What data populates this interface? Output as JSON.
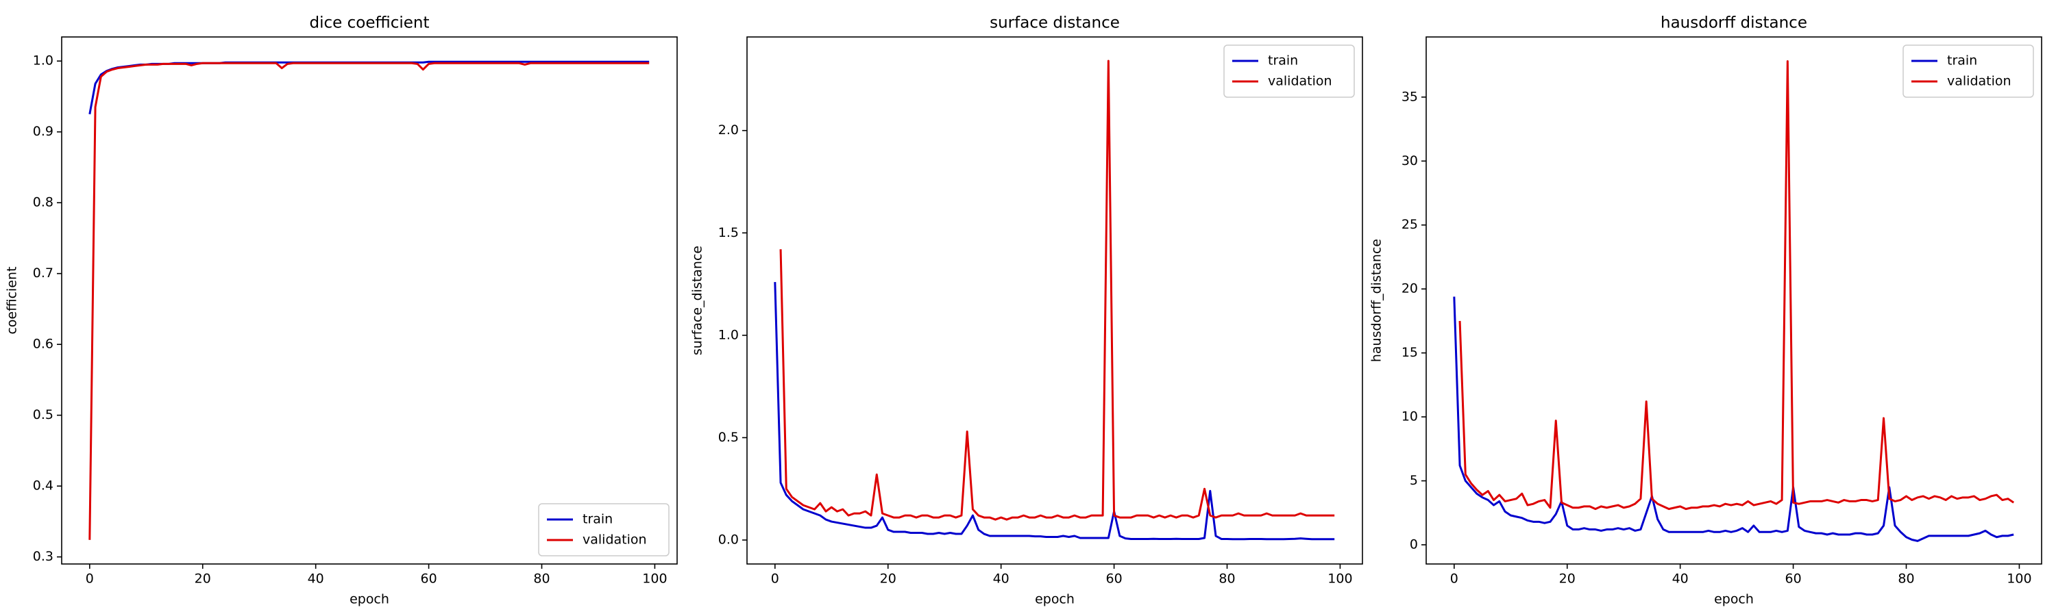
{
  "chart_data": [
    {
      "type": "line",
      "title": "dice coefficient",
      "x_label": "epoch",
      "y_label": "coefficient",
      "legend": "lower right",
      "x": [
        0,
        1,
        2,
        3,
        4,
        5,
        6,
        7,
        8,
        9,
        10,
        11,
        12,
        13,
        14,
        15,
        16,
        17,
        18,
        19,
        20,
        21,
        22,
        23,
        24,
        25,
        26,
        27,
        28,
        29,
        30,
        31,
        32,
        33,
        34,
        35,
        36,
        37,
        38,
        39,
        40,
        41,
        42,
        43,
        44,
        45,
        46,
        47,
        48,
        49,
        50,
        51,
        52,
        53,
        54,
        55,
        56,
        57,
        58,
        59,
        60,
        61,
        62,
        63,
        64,
        65,
        66,
        67,
        68,
        69,
        70,
        71,
        72,
        73,
        74,
        75,
        76,
        77,
        78,
        79,
        80,
        81,
        82,
        83,
        84,
        85,
        86,
        87,
        88,
        89,
        90,
        91,
        92,
        93,
        94,
        95,
        96,
        97,
        98,
        99
      ],
      "xlim": [
        -4.95,
        103.95
      ],
      "xticks": [
        0,
        20,
        40,
        60,
        80,
        100
      ],
      "ylim": [
        0.29,
        1.034
      ],
      "yticks": [
        0.3,
        0.4,
        0.5,
        0.6,
        0.7,
        0.8,
        0.9,
        {
          "value": 1,
          "label": "1.0"
        }
      ],
      "series": [
        {
          "name": "train",
          "color": "#0000cd",
          "values": [
            0.925,
            0.968,
            0.981,
            0.986,
            0.989,
            0.991,
            0.992,
            0.993,
            0.994,
            0.995,
            0.995,
            0.996,
            0.996,
            0.996,
            0.996,
            0.997,
            0.997,
            0.997,
            0.997,
            0.997,
            0.997,
            0.997,
            0.997,
            0.997,
            0.998,
            0.998,
            0.998,
            0.998,
            0.998,
            0.998,
            0.998,
            0.998,
            0.998,
            0.998,
            0.998,
            0.998,
            0.998,
            0.998,
            0.998,
            0.998,
            0.998,
            0.998,
            0.998,
            0.998,
            0.998,
            0.998,
            0.998,
            0.998,
            0.998,
            0.998,
            0.998,
            0.998,
            0.998,
            0.998,
            0.998,
            0.998,
            0.998,
            0.998,
            0.998,
            0.998,
            0.999,
            0.999,
            0.999,
            0.999,
            0.999,
            0.999,
            0.999,
            0.999,
            0.999,
            0.999,
            0.999,
            0.999,
            0.999,
            0.999,
            0.999,
            0.999,
            0.999,
            0.999,
            0.999,
            0.999,
            0.999,
            0.999,
            0.999,
            0.999,
            0.999,
            0.999,
            0.999,
            0.999,
            0.999,
            0.999,
            0.999,
            0.999,
            0.999,
            0.999,
            0.999,
            0.999,
            0.999,
            0.999,
            0.999,
            0.999
          ]
        },
        {
          "name": "validation",
          "color": "#dd0000",
          "values": [
            0.324,
            0.935,
            0.978,
            0.985,
            0.988,
            0.99,
            0.991,
            0.992,
            0.993,
            0.994,
            0.995,
            0.995,
            0.995,
            0.996,
            0.996,
            0.996,
            0.996,
            0.996,
            0.994,
            0.996,
            0.997,
            0.997,
            0.997,
            0.997,
            0.997,
            0.997,
            0.997,
            0.997,
            0.997,
            0.997,
            0.997,
            0.997,
            0.997,
            0.997,
            0.99,
            0.996,
            0.997,
            0.997,
            0.997,
            0.997,
            0.997,
            0.997,
            0.997,
            0.997,
            0.997,
            0.997,
            0.997,
            0.997,
            0.997,
            0.997,
            0.997,
            0.997,
            0.997,
            0.997,
            0.997,
            0.997,
            0.997,
            0.997,
            0.996,
            0.988,
            0.996,
            0.997,
            0.997,
            0.997,
            0.997,
            0.997,
            0.997,
            0.997,
            0.997,
            0.997,
            0.997,
            0.997,
            0.997,
            0.997,
            0.997,
            0.997,
            0.997,
            0.995,
            0.997,
            0.997,
            0.997,
            0.997,
            0.997,
            0.997,
            0.997,
            0.997,
            0.997,
            0.997,
            0.997,
            0.997,
            0.997,
            0.997,
            0.997,
            0.997,
            0.997,
            0.997,
            0.997,
            0.997,
            0.997,
            0.997
          ]
        }
      ]
    },
    {
      "type": "line",
      "title": "surface distance",
      "x_label": "epoch",
      "y_label": "surface_distance",
      "legend": "upper right",
      "x": [
        0,
        1,
        2,
        3,
        4,
        5,
        6,
        7,
        8,
        9,
        10,
        11,
        12,
        13,
        14,
        15,
        16,
        17,
        18,
        19,
        20,
        21,
        22,
        23,
        24,
        25,
        26,
        27,
        28,
        29,
        30,
        31,
        32,
        33,
        34,
        35,
        36,
        37,
        38,
        39,
        40,
        41,
        42,
        43,
        44,
        45,
        46,
        47,
        48,
        49,
        50,
        51,
        52,
        53,
        54,
        55,
        56,
        57,
        58,
        59,
        60,
        61,
        62,
        63,
        64,
        65,
        66,
        67,
        68,
        69,
        70,
        71,
        72,
        73,
        74,
        75,
        76,
        77,
        78,
        79,
        80,
        81,
        82,
        83,
        84,
        85,
        86,
        87,
        88,
        89,
        90,
        91,
        92,
        93,
        94,
        95,
        96,
        97,
        98,
        99
      ],
      "xlim": [
        -4.95,
        103.95
      ],
      "xticks": [
        0,
        20,
        40,
        60,
        80,
        100
      ],
      "ylim": [
        -0.117,
        2.457
      ],
      "yticks": [
        {
          "value": 0,
          "label": "0.0"
        },
        0.5,
        {
          "value": 1,
          "label": "1.0"
        },
        1.5,
        {
          "value": 2,
          "label": "2.0"
        }
      ],
      "series": [
        {
          "name": "train",
          "color": "#0000cd",
          "values": [
            1.26,
            0.28,
            0.22,
            0.19,
            0.17,
            0.15,
            0.14,
            0.13,
            0.12,
            0.1,
            0.09,
            0.085,
            0.08,
            0.075,
            0.07,
            0.065,
            0.06,
            0.06,
            0.07,
            0.11,
            0.05,
            0.04,
            0.04,
            0.04,
            0.035,
            0.035,
            0.035,
            0.03,
            0.03,
            0.035,
            0.03,
            0.035,
            0.03,
            0.03,
            0.07,
            0.12,
            0.05,
            0.03,
            0.02,
            0.02,
            0.02,
            0.02,
            0.02,
            0.02,
            0.02,
            0.02,
            0.018,
            0.018,
            0.015,
            0.015,
            0.015,
            0.02,
            0.015,
            0.02,
            0.01,
            0.01,
            0.01,
            0.01,
            0.01,
            0.01,
            0.14,
            0.02,
            0.008,
            0.005,
            0.005,
            0.005,
            0.005,
            0.006,
            0.005,
            0.005,
            0.005,
            0.006,
            0.005,
            0.005,
            0.005,
            0.005,
            0.01,
            0.24,
            0.02,
            0.005,
            0.005,
            0.004,
            0.004,
            0.004,
            0.005,
            0.005,
            0.005,
            0.004,
            0.004,
            0.004,
            0.004,
            0.005,
            0.006,
            0.008,
            0.006,
            0.004,
            0.004,
            0.004,
            0.004,
            0.004
          ]
        },
        {
          "name": "validation",
          "color": "#dd0000",
          "values": [
            null,
            1.42,
            0.25,
            0.21,
            0.19,
            0.17,
            0.16,
            0.15,
            0.18,
            0.14,
            0.16,
            0.14,
            0.15,
            0.12,
            0.13,
            0.13,
            0.14,
            0.12,
            0.32,
            0.13,
            0.12,
            0.11,
            0.11,
            0.12,
            0.12,
            0.11,
            0.12,
            0.12,
            0.11,
            0.11,
            0.12,
            0.12,
            0.11,
            0.12,
            0.53,
            0.15,
            0.12,
            0.11,
            0.11,
            0.1,
            0.11,
            0.1,
            0.11,
            0.11,
            0.12,
            0.11,
            0.11,
            0.12,
            0.11,
            0.11,
            0.12,
            0.11,
            0.11,
            0.12,
            0.11,
            0.11,
            0.12,
            0.12,
            0.12,
            2.34,
            0.12,
            0.11,
            0.11,
            0.11,
            0.12,
            0.12,
            0.12,
            0.11,
            0.12,
            0.11,
            0.12,
            0.11,
            0.12,
            0.12,
            0.11,
            0.12,
            0.25,
            0.12,
            0.11,
            0.12,
            0.12,
            0.12,
            0.13,
            0.12,
            0.12,
            0.12,
            0.12,
            0.13,
            0.12,
            0.12,
            0.12,
            0.12,
            0.12,
            0.13,
            0.12,
            0.12,
            0.12,
            0.12,
            0.12,
            0.12
          ]
        }
      ]
    },
    {
      "type": "line",
      "title": "hausdorff distance",
      "x_label": "epoch",
      "y_label": "hausdorff_distance",
      "legend": "upper right",
      "x": [
        0,
        1,
        2,
        3,
        4,
        5,
        6,
        7,
        8,
        9,
        10,
        11,
        12,
        13,
        14,
        15,
        16,
        17,
        18,
        19,
        20,
        21,
        22,
        23,
        24,
        25,
        26,
        27,
        28,
        29,
        30,
        31,
        32,
        33,
        34,
        35,
        36,
        37,
        38,
        39,
        40,
        41,
        42,
        43,
        44,
        45,
        46,
        47,
        48,
        49,
        50,
        51,
        52,
        53,
        54,
        55,
        56,
        57,
        58,
        59,
        60,
        61,
        62,
        63,
        64,
        65,
        66,
        67,
        68,
        69,
        70,
        71,
        72,
        73,
        74,
        75,
        76,
        77,
        78,
        79,
        80,
        81,
        82,
        83,
        84,
        85,
        86,
        87,
        88,
        89,
        90,
        91,
        92,
        93,
        94,
        95,
        96,
        97,
        98,
        99
      ],
      "xlim": [
        -4.95,
        103.95
      ],
      "xticks": [
        0,
        20,
        40,
        60,
        80,
        100
      ],
      "ylim": [
        -1.5,
        39.7
      ],
      "yticks": [
        0,
        5,
        10,
        15,
        20,
        25,
        30,
        35
      ],
      "series": [
        {
          "name": "train",
          "color": "#0000cd",
          "values": [
            19.4,
            6.2,
            5.0,
            4.5,
            4.0,
            3.7,
            3.5,
            3.1,
            3.4,
            2.6,
            2.3,
            2.2,
            2.1,
            1.9,
            1.8,
            1.8,
            1.7,
            1.8,
            2.4,
            3.4,
            1.5,
            1.2,
            1.2,
            1.3,
            1.2,
            1.2,
            1.1,
            1.2,
            1.2,
            1.3,
            1.2,
            1.3,
            1.1,
            1.2,
            2.5,
            3.8,
            2.0,
            1.2,
            1.0,
            1.0,
            1.0,
            1.0,
            1.0,
            1.0,
            1.0,
            1.1,
            1.0,
            1.0,
            1.1,
            1.0,
            1.1,
            1.3,
            1.0,
            1.5,
            1.0,
            1.0,
            1.0,
            1.1,
            1.0,
            1.1,
            4.5,
            1.4,
            1.1,
            1.0,
            0.9,
            0.9,
            0.8,
            0.9,
            0.8,
            0.8,
            0.8,
            0.9,
            0.9,
            0.8,
            0.8,
            0.9,
            1.5,
            4.5,
            1.5,
            1.0,
            0.6,
            0.4,
            0.3,
            0.5,
            0.7,
            0.7,
            0.7,
            0.7,
            0.7,
            0.7,
            0.7,
            0.7,
            0.8,
            0.9,
            1.1,
            0.8,
            0.6,
            0.7,
            0.7,
            0.8
          ]
        },
        {
          "name": "validation",
          "color": "#dd0000",
          "values": [
            null,
            17.5,
            5.5,
            4.8,
            4.3,
            3.9,
            4.2,
            3.5,
            3.9,
            3.4,
            3.5,
            3.6,
            4.0,
            3.1,
            3.2,
            3.4,
            3.5,
            2.9,
            9.7,
            3.3,
            3.1,
            2.9,
            2.9,
            3.0,
            3.0,
            2.8,
            3.0,
            2.9,
            3.0,
            3.1,
            2.9,
            3.0,
            3.2,
            3.6,
            11.2,
            3.6,
            3.2,
            3.0,
            2.8,
            2.9,
            3.0,
            2.8,
            2.9,
            2.9,
            3.0,
            3.0,
            3.1,
            3.0,
            3.2,
            3.1,
            3.2,
            3.1,
            3.4,
            3.1,
            3.2,
            3.3,
            3.4,
            3.2,
            3.5,
            37.8,
            3.3,
            3.2,
            3.3,
            3.4,
            3.4,
            3.4,
            3.5,
            3.4,
            3.3,
            3.5,
            3.4,
            3.4,
            3.5,
            3.5,
            3.4,
            3.5,
            9.9,
            3.6,
            3.4,
            3.5,
            3.8,
            3.5,
            3.7,
            3.8,
            3.6,
            3.8,
            3.7,
            3.5,
            3.8,
            3.6,
            3.7,
            3.7,
            3.8,
            3.5,
            3.6,
            3.8,
            3.9,
            3.5,
            3.6,
            3.3
          ]
        }
      ]
    }
  ]
}
